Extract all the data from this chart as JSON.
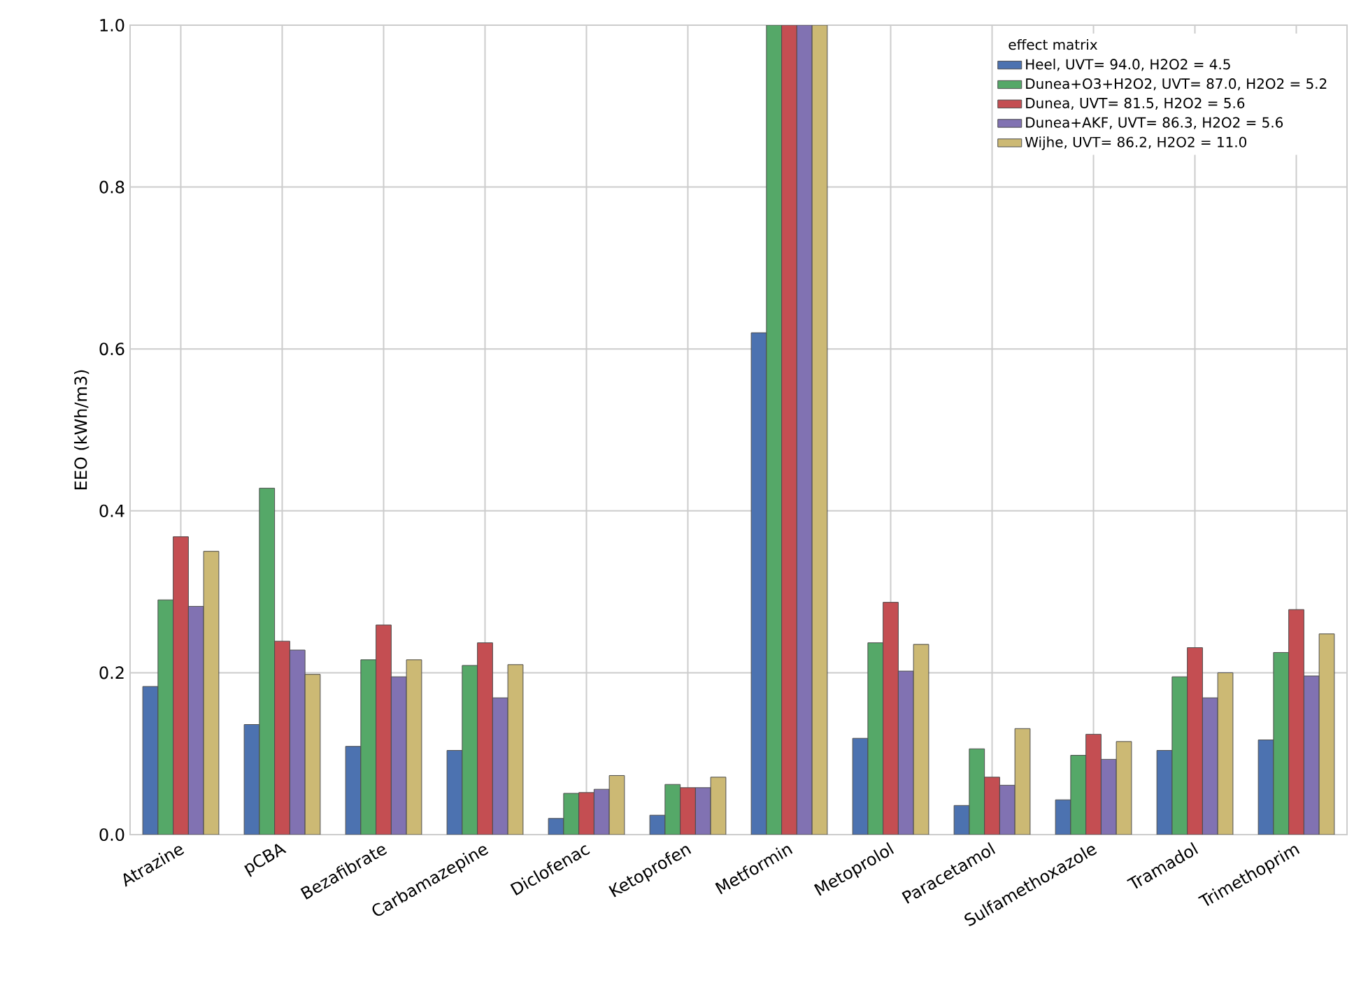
{
  "chart_data": {
    "type": "bar",
    "ylabel": "EEO (kWh/m3)",
    "legend_title": "effect matrix",
    "categories": [
      "Atrazine",
      "pCBA",
      "Bezafibrate",
      "Carbamazepine",
      "Diclofenac",
      "Ketoprofen",
      "Metformin",
      "Metoprolol",
      "Paracetamol",
      "Sulfamethoxazole",
      "Tramadol",
      "Trimethoprim"
    ],
    "series": [
      {
        "name": "Heel, UVT= 94.0, H2O2 = 4.5",
        "color": "#4c72b0",
        "values": [
          0.183,
          0.136,
          0.109,
          0.104,
          0.02,
          0.024,
          0.62,
          0.119,
          0.036,
          0.043,
          0.104,
          0.117
        ]
      },
      {
        "name": "Dunea+O3+H2O2, UVT= 87.0, H2O2 = 5.2",
        "color": "#55a868",
        "values": [
          0.29,
          0.428,
          0.216,
          0.209,
          0.051,
          0.062,
          1.0,
          0.237,
          0.106,
          0.098,
          0.195,
          0.225
        ]
      },
      {
        "name": "Dunea, UVT= 81.5, H2O2 = 5.6",
        "color": "#c44e52",
        "values": [
          0.368,
          0.239,
          0.259,
          0.237,
          0.052,
          0.058,
          1.0,
          0.287,
          0.071,
          0.124,
          0.231,
          0.278
        ]
      },
      {
        "name": "Dunea+AKF, UVT= 86.3, H2O2 = 5.6",
        "color": "#8172b2",
        "values": [
          0.282,
          0.228,
          0.195,
          0.169,
          0.056,
          0.058,
          1.0,
          0.202,
          0.061,
          0.093,
          0.169,
          0.196
        ]
      },
      {
        "name": "Wijhe, UVT= 86.2, H2O2 = 11.0",
        "color": "#ccb974",
        "values": [
          0.35,
          0.198,
          0.216,
          0.21,
          0.073,
          0.071,
          1.0,
          0.235,
          0.131,
          0.115,
          0.2,
          0.248
        ]
      }
    ],
    "ylim": [
      0,
      1
    ],
    "yticks": [
      {
        "value": 0,
        "label": "0.0"
      },
      {
        "value": 0.2,
        "label": "0.2"
      },
      {
        "value": 0.4,
        "label": "0.4"
      },
      {
        "value": 0.6,
        "label": "0.6"
      },
      {
        "value": 0.8,
        "label": "0.8"
      },
      {
        "value": 1,
        "label": "1.0"
      }
    ],
    "grid": true,
    "legend": "top right"
  }
}
